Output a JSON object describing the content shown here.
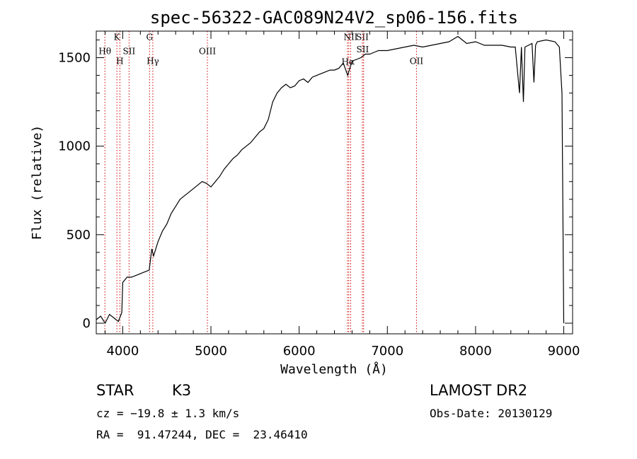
{
  "chart_data": {
    "type": "line",
    "title": "spec-56322-GAC089N24V2_sp06-156.fits",
    "xlabel": "Wavelength (Å)",
    "ylabel": "Flux (relative)",
    "xlim": [
      3700,
      9100
    ],
    "ylim": [
      -60,
      1650
    ],
    "xticks": [
      4000,
      5000,
      6000,
      7000,
      8000,
      9000
    ],
    "yticks": [
      0,
      500,
      1000,
      1500
    ],
    "grid": false,
    "series": [
      {
        "x": [
          3700,
          3750,
          3800,
          3850,
          3900,
          3950,
          3990,
          4000,
          4050,
          4100,
          4150,
          4200,
          4250,
          4300,
          4330,
          4350,
          4400,
          4450,
          4500,
          4550,
          4600,
          4650,
          4700,
          4750,
          4800,
          4850,
          4900,
          4950,
          5000,
          5050,
          5100,
          5150,
          5200,
          5250,
          5300,
          5350,
          5400,
          5450,
          5500,
          5550,
          5600,
          5650,
          5700,
          5750,
          5800,
          5850,
          5900,
          5950,
          6000,
          6050,
          6100,
          6150,
          6200,
          6250,
          6300,
          6350,
          6400,
          6450,
          6500,
          6550,
          6600,
          6650,
          6700,
          6750,
          6800,
          6850,
          6900,
          6950,
          7000,
          7100,
          7200,
          7300,
          7400,
          7500,
          7600,
          7700,
          7800,
          7850,
          7900,
          8000,
          8100,
          8200,
          8300,
          8400,
          8450,
          8498,
          8520,
          8542,
          8560,
          8600,
          8640,
          8662,
          8680,
          8700,
          8800,
          8900,
          8950,
          8980,
          9000
        ],
        "y": [
          20,
          40,
          0,
          50,
          30,
          10,
          60,
          230,
          260,
          260,
          270,
          280,
          290,
          300,
          420,
          380,
          460,
          520,
          560,
          620,
          660,
          700,
          720,
          740,
          760,
          780,
          800,
          790,
          770,
          800,
          830,
          870,
          900,
          930,
          950,
          980,
          1000,
          1020,
          1050,
          1080,
          1100,
          1150,
          1250,
          1300,
          1330,
          1350,
          1330,
          1340,
          1370,
          1380,
          1360,
          1390,
          1400,
          1410,
          1420,
          1430,
          1430,
          1440,
          1470,
          1400,
          1480,
          1490,
          1500,
          1520,
          1520,
          1530,
          1540,
          1540,
          1540,
          1550,
          1560,
          1570,
          1560,
          1570,
          1580,
          1590,
          1620,
          1600,
          1580,
          1590,
          1570,
          1570,
          1570,
          1560,
          1560,
          1300,
          1560,
          1250,
          1560,
          1570,
          1580,
          1360,
          1570,
          1590,
          1600,
          1590,
          1560,
          1300,
          0
        ]
      }
    ],
    "vlines": [
      {
        "x": 3798,
        "label": "Hθ",
        "label_y": 1520
      },
      {
        "x": 3934,
        "label": "K",
        "label_y": 1600
      },
      {
        "x": 3968,
        "label": "H",
        "label_y": 1465
      },
      {
        "x": 4072,
        "label": "SII",
        "label_y": 1520
      },
      {
        "x": 4304,
        "label": "G",
        "label_y": 1600
      },
      {
        "x": 4341,
        "label": "Hγ",
        "label_y": 1465
      },
      {
        "x": 4960,
        "label": "OIII",
        "label_y": 1520
      },
      {
        "x": 6548,
        "label": "",
        "label_y": 0
      },
      {
        "x": 6563,
        "label": "",
        "label_y": 0
      },
      {
        "x": 6584,
        "label": "NII",
        "label_y": 1600
      },
      {
        "x": 6717,
        "label": "SII",
        "label_y": 1600
      },
      {
        "x": 6731,
        "label": "",
        "label_y": 0
      },
      {
        "x": 7330,
        "label": "OII",
        "label_y": 1465
      }
    ],
    "overlapping_labels": [
      {
        "x": 6555,
        "label": "Hα",
        "label_y": 1460
      },
      {
        "x": 6720,
        "label": "SII",
        "label_y": 1530
      }
    ],
    "colors": {
      "spectrum": "#000000",
      "vline": "#cc0000",
      "axes": "#000000"
    }
  },
  "info": {
    "class_type": "STAR",
    "subclass": "K3",
    "survey": "LAMOST DR2",
    "redshift": "cz = −19.8 ± 1.3 km/s",
    "obs_date": "Obs-Date: 20130129",
    "coords": "RA =  91.47244, DEC =  23.46410"
  }
}
